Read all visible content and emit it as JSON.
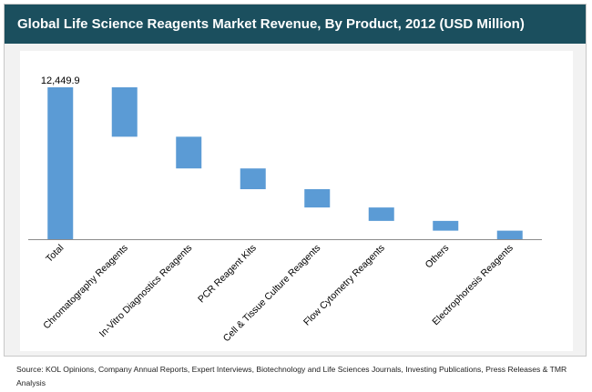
{
  "chart_data": {
    "type": "bar",
    "subtype": "waterfall",
    "title": "Global Life Science Reagents Market Revenue, By Product, 2012 (USD Million)",
    "categories": [
      "Total",
      "Chromatography Reagents",
      "In-Vitro Diagnostics Reagents",
      "PCR Reagent Kits",
      "Cell & Tissue Culture Reagents",
      "Flow Cytometry Reagents",
      "Others",
      "Electrophoresis Reagents"
    ],
    "segments": [
      {
        "category": "Total",
        "start": 0,
        "end": 12449.9
      },
      {
        "category": "Chromatography Reagents",
        "start": 8400,
        "end": 12449.9
      },
      {
        "category": "In-Vitro Diagnostics Reagents",
        "start": 5800,
        "end": 8400
      },
      {
        "category": "PCR Reagent Kits",
        "start": 4100,
        "end": 5800
      },
      {
        "category": "Cell & Tissue Culture Reagents",
        "start": 2600,
        "end": 4100
      },
      {
        "category": "Flow Cytometry Reagents",
        "start": 1500,
        "end": 2600
      },
      {
        "category": "Others",
        "start": 700,
        "end": 1500
      },
      {
        "category": "Electrophoresis Reagents",
        "start": 0,
        "end": 700
      }
    ],
    "data_labels": [
      {
        "category": "Total",
        "text": "12,449.9"
      }
    ],
    "xlabel": "",
    "ylabel": "",
    "ylim": [
      0,
      12449.9
    ],
    "y_axis_visible": false,
    "grid": false,
    "legend": "none",
    "bar_color": "#5b9bd5"
  },
  "source_text": "Source: KOL Opinions, Company Annual Reports, Expert Interviews, Biotechnology and Life Sciences Journals, Investing Publications, Press Releases & TMR Analysis",
  "colors": {
    "title_bar": "#1b4f5e",
    "plot_background": "#ffffff",
    "frame_background": "#f2f2f2",
    "bar": "#5b9bd5"
  }
}
